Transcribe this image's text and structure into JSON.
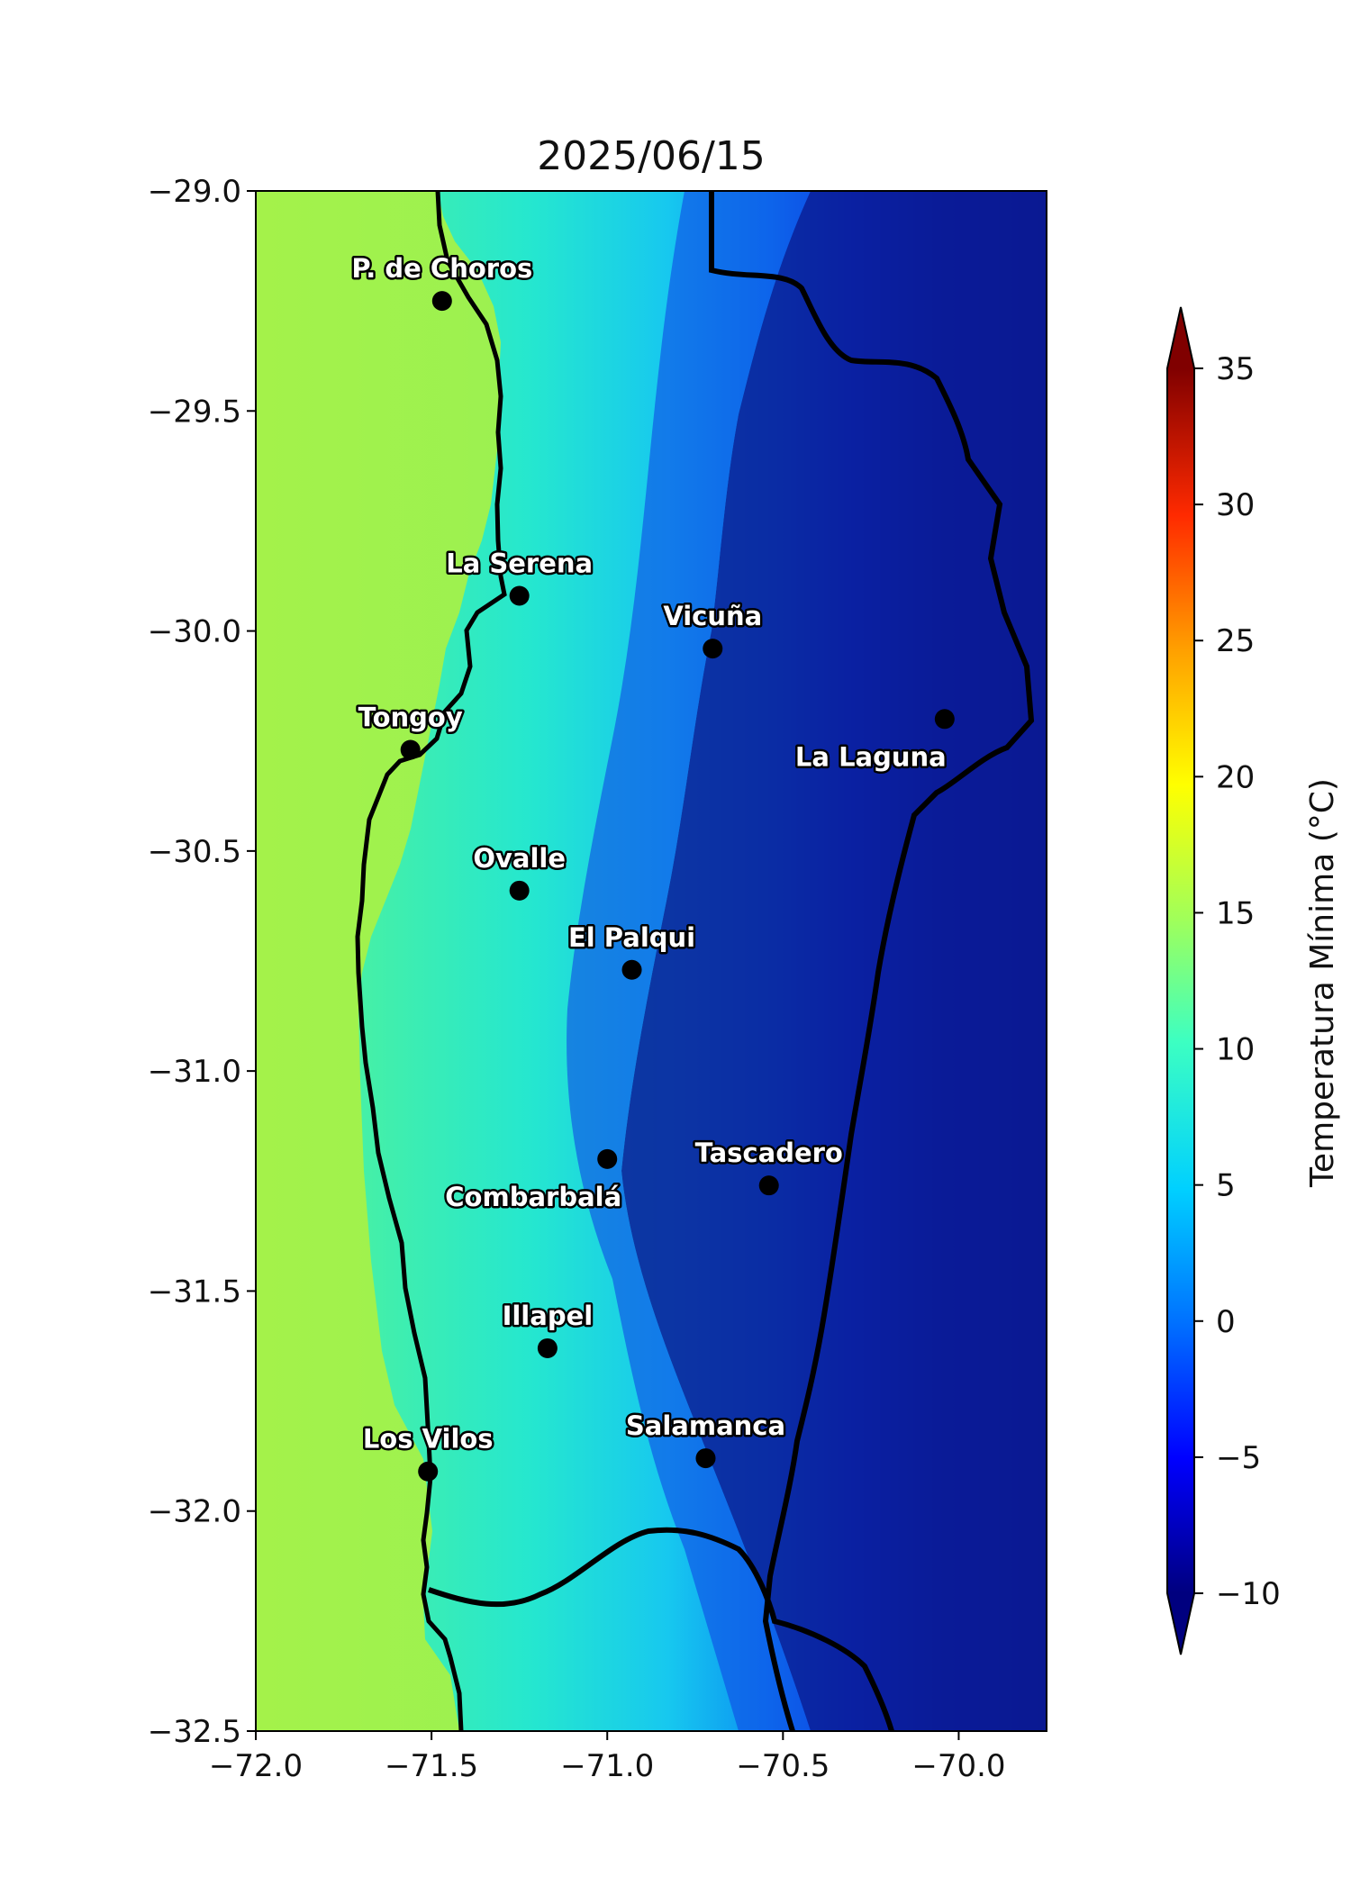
{
  "title": "2025/06/15",
  "map": {
    "lon_range": [
      -72.0,
      -69.75
    ],
    "lat_range": [
      -32.5,
      -29.0
    ],
    "x_ticks": [
      {
        "value": -72.0,
        "label": "−72.0"
      },
      {
        "value": -71.5,
        "label": "−71.5"
      },
      {
        "value": -71.0,
        "label": "−71.0"
      },
      {
        "value": -70.5,
        "label": "−70.5"
      },
      {
        "value": -70.0,
        "label": "−70.0"
      }
    ],
    "y_ticks": [
      {
        "value": -29.0,
        "label": "−29.0"
      },
      {
        "value": -29.5,
        "label": "−29.5"
      },
      {
        "value": -30.0,
        "label": "−30.0"
      },
      {
        "value": -30.5,
        "label": "−30.5"
      },
      {
        "value": -31.0,
        "label": "−31.0"
      },
      {
        "value": -31.5,
        "label": "−31.5"
      },
      {
        "value": -32.0,
        "label": "−32.0"
      },
      {
        "value": -32.5,
        "label": "−32.5"
      }
    ]
  },
  "cities": [
    {
      "name": "P. de Choros",
      "lon": -71.47,
      "lat": -29.25,
      "label_anchor": "above"
    },
    {
      "name": "La Serena",
      "lon": -71.25,
      "lat": -29.92,
      "label_anchor": "above"
    },
    {
      "name": "Vicuña",
      "lon": -70.7,
      "lat": -30.04,
      "label_anchor": "above"
    },
    {
      "name": "La Laguna",
      "lon": -70.04,
      "lat": -30.2,
      "label_anchor": "below-left"
    },
    {
      "name": "Tongoy",
      "lon": -71.56,
      "lat": -30.27,
      "label_anchor": "above"
    },
    {
      "name": "Ovalle",
      "lon": -71.25,
      "lat": -30.59,
      "label_anchor": "above"
    },
    {
      "name": "El Palqui",
      "lon": -70.93,
      "lat": -30.77,
      "label_anchor": "above"
    },
    {
      "name": "Tascadero",
      "lon": -70.54,
      "lat": -31.26,
      "label_anchor": "above"
    },
    {
      "name": "Combarbalá",
      "lon": -71.0,
      "lat": -31.2,
      "label_anchor": "below-left"
    },
    {
      "name": "Illapel",
      "lon": -71.17,
      "lat": -31.63,
      "label_anchor": "above"
    },
    {
      "name": "Los Vilos",
      "lon": -71.51,
      "lat": -31.91,
      "label_anchor": "above"
    },
    {
      "name": "Salamanca",
      "lon": -70.72,
      "lat": -31.88,
      "label_anchor": "above"
    }
  ],
  "colorbar": {
    "label": "Temperatura Mínima (°C)",
    "min": -10,
    "max": 35,
    "ticks": [
      {
        "value": 35,
        "label": "35"
      },
      {
        "value": 30,
        "label": "30"
      },
      {
        "value": 25,
        "label": "25"
      },
      {
        "value": 20,
        "label": "20"
      },
      {
        "value": 15,
        "label": "15"
      },
      {
        "value": 10,
        "label": "10"
      },
      {
        "value": 5,
        "label": "5"
      },
      {
        "value": 0,
        "label": "0"
      },
      {
        "value": -5,
        "label": "−5"
      },
      {
        "value": -10,
        "label": "−10"
      }
    ],
    "colormap": "jet",
    "extend": "both"
  },
  "colors": {
    "ocean": "#8ff05c",
    "coast_band": "#3df2a8",
    "valley": "#1fd6e8",
    "foothills": "#0b6cf0",
    "andes": "#0a1a8c",
    "boundary": "#000000"
  }
}
